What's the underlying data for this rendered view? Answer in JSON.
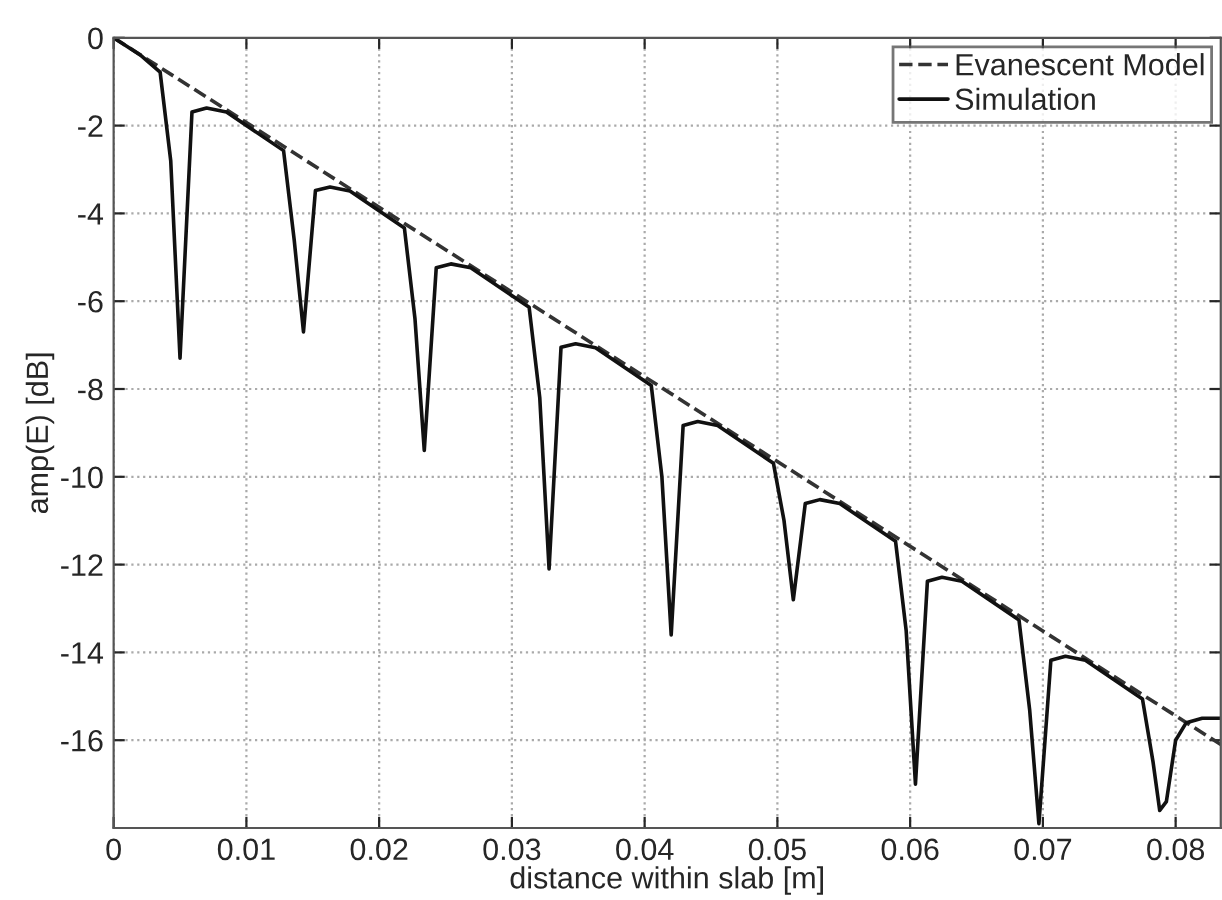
{
  "chart_data": {
    "type": "line",
    "xlabel": "distance within slab [m]",
    "ylabel": "amp(E) [dB]",
    "xlim": [
      0,
      0.0834
    ],
    "ylim": [
      -18,
      0
    ],
    "xticks": [
      {
        "value": 0,
        "label": "0"
      },
      0.01,
      0.02,
      0.03,
      0.04,
      0.05,
      0.06,
      0.07,
      0.08
    ],
    "yticks": [
      -16,
      -14,
      -12,
      -10,
      -8,
      -6,
      -4,
      -2,
      0
    ],
    "grid": true,
    "legend": "top right",
    "series": [
      {
        "name": "Evanescent Model",
        "color": "#333333",
        "line_style": "dashed",
        "x": [
          0,
          0.0834
        ],
        "values": [
          0,
          -16.1
        ]
      },
      {
        "name": "Simulation",
        "color": "#111111",
        "line_style": "solid",
        "x": [
          0,
          0.002,
          0.0035,
          0.0043,
          0.005,
          0.0059,
          0.007,
          0.0085,
          0.0128,
          0.0136,
          0.0143,
          0.0152,
          0.0163,
          0.0178,
          0.0219,
          0.0227,
          0.0234,
          0.0243,
          0.0254,
          0.0269,
          0.0313,
          0.0321,
          0.0328,
          0.0337,
          0.0348,
          0.0363,
          0.0405,
          0.0413,
          0.042,
          0.0429,
          0.044,
          0.0455,
          0.0497,
          0.0505,
          0.0512,
          0.0521,
          0.0532,
          0.0547,
          0.0589,
          0.0597,
          0.0604,
          0.0613,
          0.0624,
          0.0639,
          0.0682,
          0.069,
          0.0697,
          0.0706,
          0.0717,
          0.0732,
          0.0775,
          0.0783,
          0.0788,
          0.0793,
          0.08,
          0.0808,
          0.082,
          0.0834
        ],
        "values": [
          0,
          -0.39,
          -0.78,
          -2.8,
          -7.3,
          -1.69,
          -1.6,
          -1.69,
          -2.57,
          -4.6,
          -6.7,
          -3.48,
          -3.4,
          -3.49,
          -4.33,
          -6.4,
          -9.4,
          -5.24,
          -5.15,
          -5.24,
          -6.14,
          -8.2,
          -12.1,
          -7.05,
          -6.97,
          -7.06,
          -7.92,
          -10.0,
          -13.6,
          -8.83,
          -8.74,
          -8.83,
          -9.69,
          -11.0,
          -12.8,
          -10.61,
          -10.52,
          -10.61,
          -11.47,
          -13.5,
          -17.0,
          -12.38,
          -12.29,
          -12.38,
          -13.26,
          -15.3,
          -17.9,
          -14.18,
          -14.09,
          -14.18,
          -15.06,
          -16.5,
          -17.6,
          -17.4,
          -16.0,
          -15.6,
          -15.5,
          -15.5
        ]
      }
    ]
  }
}
